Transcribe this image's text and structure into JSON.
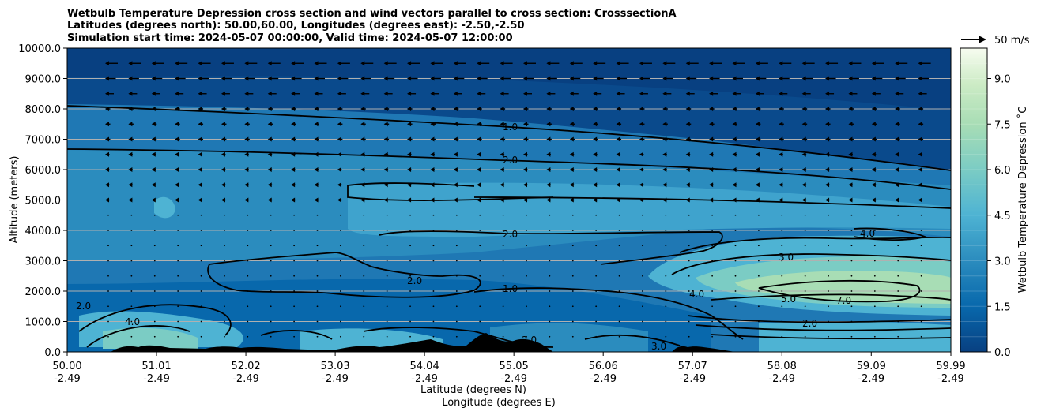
{
  "chart_data": {
    "type": "contourf",
    "title_lines": [
      "Wetbulb Temperature Depression cross section and wind vectors parallel to cross section: CrosssectionA",
      "Latitudes (degrees north): 50.00,60.00, Longitudes (degrees east): -2.50,-2.50",
      "Simulation start time: 2024-05-07 00:00:00, Valid time: 2024-05-07 12:00:00"
    ],
    "xlabel_lines": [
      "Latitude (degrees N)",
      "Longitude (degrees E)"
    ],
    "ylabel": "Altitude (meters)",
    "xlim": [
      50.0,
      59.99
    ],
    "ylim": [
      0,
      10000
    ],
    "x_ticks": [
      {
        "lat": "50.00",
        "lon": "-2.49",
        "v": 50.0
      },
      {
        "lat": "51.01",
        "lon": "-2.49",
        "v": 51.01
      },
      {
        "lat": "52.02",
        "lon": "-2.49",
        "v": 52.02
      },
      {
        "lat": "53.03",
        "lon": "-2.49",
        "v": 53.03
      },
      {
        "lat": "54.04",
        "lon": "-2.49",
        "v": 54.04
      },
      {
        "lat": "55.05",
        "lon": "-2.49",
        "v": 55.05
      },
      {
        "lat": "56.06",
        "lon": "-2.49",
        "v": 56.06
      },
      {
        "lat": "57.07",
        "lon": "-2.49",
        "v": 57.07
      },
      {
        "lat": "58.08",
        "lon": "-2.49",
        "v": 58.08
      },
      {
        "lat": "59.09",
        "lon": "-2.49",
        "v": 59.09
      },
      {
        "lat": "59.99",
        "lon": "-2.49",
        "v": 59.99
      }
    ],
    "y_ticks": [
      "0.0",
      "1000.0",
      "2000.0",
      "3000.0",
      "4000.0",
      "5000.0",
      "6000.0",
      "7000.0",
      "8000.0",
      "9000.0",
      "10000.0"
    ],
    "grid": "horizontal",
    "colorbar": {
      "label": "Wetbulb Temperature Depression ˚C",
      "ticks": [
        "0.0",
        "1.5",
        "3.0",
        "4.5",
        "6.0",
        "7.5",
        "9.0"
      ],
      "range": [
        0,
        10
      ],
      "colormap": "GnBu_r",
      "low_color": "#084081",
      "high_color": "#f7fcf0"
    },
    "quiver_key": "50 m/s",
    "contour_levels_labeled": [
      "1.0",
      "2.0",
      "3.0",
      "4.0",
      "5.0",
      "7.0"
    ],
    "terrain_color": "#000000",
    "background_regions": [
      {
        "x": [
          50.0,
          59.99
        ],
        "y": [
          8000,
          10000
        ],
        "value": 0.4
      },
      {
        "x": [
          50.0,
          59.99
        ],
        "y": [
          6600,
          8000
        ],
        "value": 1.2
      },
      {
        "x": [
          50.0,
          59.99
        ],
        "y": [
          4800,
          6600
        ],
        "value": 2.6
      },
      {
        "x": [
          53.5,
          59.99
        ],
        "y": [
          1500,
          3500
        ],
        "value": 2.5
      },
      {
        "x": [
          57.5,
          59.99
        ],
        "y": [
          1500,
          2800
        ],
        "value": 6.0
      },
      {
        "x": [
          50.0,
          59.99
        ],
        "y": [
          0,
          1200
        ],
        "value": 1.0
      }
    ]
  }
}
